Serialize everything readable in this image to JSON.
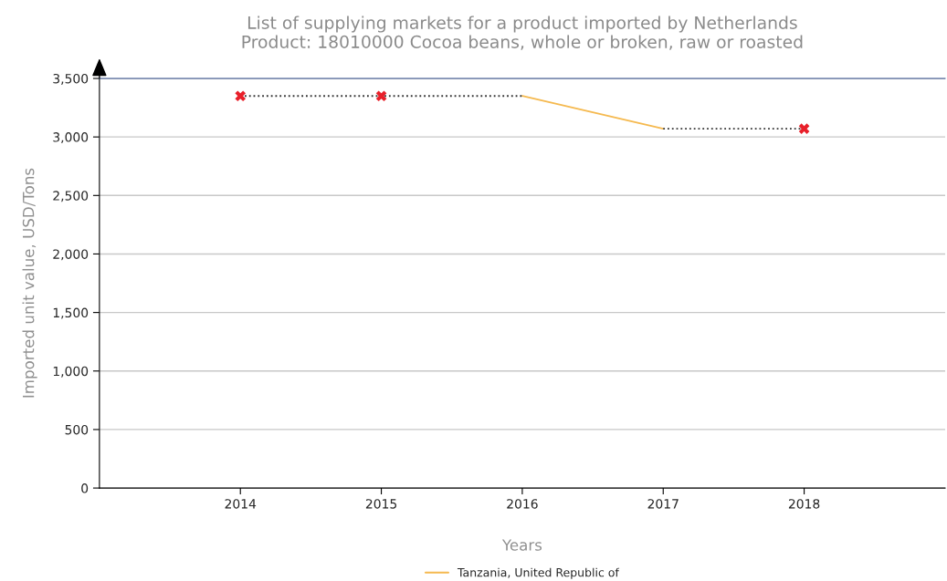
{
  "chart_data": {
    "type": "line",
    "title": "List of supplying markets for a product imported by Netherlands\nProduct: 18010000 Cocoa beans, whole or broken, raw or roasted",
    "xlabel": "Years",
    "ylabel": "Imported unit value, USD/Tons",
    "x": [
      2014,
      2015,
      2016,
      2017,
      2018
    ],
    "series": [
      {
        "name": "Tanzania, United Republic of",
        "color": "#f5b94f",
        "values": [
          null,
          null,
          3350,
          3070,
          null
        ],
        "line_style": "solid",
        "marker": "none"
      },
      {
        "color": "#333333",
        "values": [
          3350,
          3350,
          3350,
          null,
          null
        ],
        "line_style": "dotted",
        "marker": "none"
      },
      {
        "color": "#333333",
        "values": [
          null,
          null,
          null,
          3070,
          3070
        ],
        "line_style": "dotted",
        "marker": "none"
      },
      {
        "type": "scatter",
        "color": "#e8202a",
        "values": [
          3350,
          3350,
          null,
          null,
          3070
        ],
        "marker": "cross"
      }
    ],
    "xlim": [
      2013,
      2019
    ],
    "xticks": [
      2014,
      2015,
      2016,
      2017,
      2018
    ],
    "ylim": [
      0,
      3500
    ],
    "yticks": [
      {
        "value": 0,
        "label": "0"
      },
      {
        "value": 500,
        "label": "500"
      },
      {
        "value": 1000,
        "label": "1,000"
      },
      {
        "value": 1500,
        "label": "1,500"
      },
      {
        "value": 2000,
        "label": "2,000"
      },
      {
        "value": 2500,
        "label": "2,500"
      },
      {
        "value": 3000,
        "label": "3,000"
      },
      {
        "value": 3500,
        "label": "3,500"
      }
    ],
    "grid": "y",
    "legend": "bottom"
  }
}
